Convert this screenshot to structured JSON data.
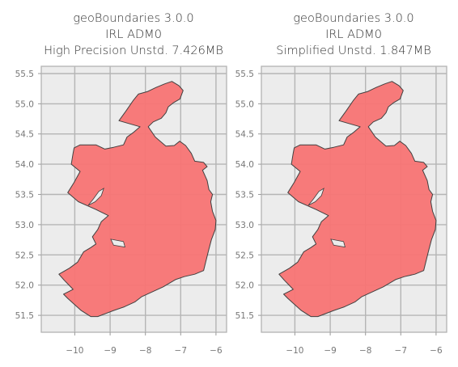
{
  "colors": {
    "land_fill": "#f87474",
    "land_edge": "#404040",
    "plot_background": "#ececec",
    "gridline": "#b5b5b5"
  },
  "panels": [
    {
      "title_lines": [
        "geoBoundaries 3.0.0",
        "IRL ADM0",
        "High Precision Unstd. 7.426MB"
      ],
      "x_ticks": [
        "−10",
        "−9",
        "−8",
        "−7",
        "−6"
      ],
      "y_ticks": [
        "51.5",
        "52.0",
        "52.5",
        "53.0",
        "53.5",
        "54.0",
        "54.5",
        "55.0",
        "55.5"
      ]
    },
    {
      "title_lines": [
        "geoBoundaries 3.0.0",
        "IRL ADM0",
        "Simplified Unstd. 1.847MB"
      ],
      "x_ticks": [
        "−10",
        "−9",
        "−8",
        "−7",
        "−6"
      ],
      "y_ticks": [
        "51.5",
        "52.0",
        "52.5",
        "53.0",
        "53.5",
        "54.0",
        "54.5",
        "55.0",
        "55.5"
      ]
    }
  ],
  "map_data": {
    "projection": "lon-lat (plate carrée, equal aspect in display)",
    "xlim": [
      -10.95,
      -5.7
    ],
    "ylim": [
      51.22,
      55.62
    ],
    "x_tick_values": [
      -10,
      -9,
      -8,
      -7,
      -6
    ],
    "y_tick_values": [
      51.5,
      52.0,
      52.5,
      53.0,
      53.5,
      54.0,
      54.5,
      55.0,
      55.5
    ],
    "grid": true,
    "ireland_outline_lonlat": [
      [
        -7.25,
        55.37
      ],
      [
        -7.05,
        55.3
      ],
      [
        -6.93,
        55.22
      ],
      [
        -7.02,
        55.08
      ],
      [
        -7.2,
        55.02
      ],
      [
        -7.35,
        54.95
      ],
      [
        -7.42,
        54.85
      ],
      [
        -7.55,
        54.76
      ],
      [
        -7.78,
        54.7
      ],
      [
        -7.92,
        54.62
      ],
      [
        -7.72,
        54.45
      ],
      [
        -7.42,
        54.3
      ],
      [
        -7.18,
        54.31
      ],
      [
        -7.03,
        54.38
      ],
      [
        -6.86,
        54.31
      ],
      [
        -6.7,
        54.18
      ],
      [
        -6.6,
        54.05
      ],
      [
        -6.35,
        54.03
      ],
      [
        -6.25,
        53.96
      ],
      [
        -6.38,
        53.9
      ],
      [
        -6.25,
        53.73
      ],
      [
        -6.2,
        53.58
      ],
      [
        -6.1,
        53.5
      ],
      [
        -6.15,
        53.38
      ],
      [
        -6.1,
        53.22
      ],
      [
        -6.0,
        53.07
      ],
      [
        -6.02,
        52.92
      ],
      [
        -6.13,
        52.75
      ],
      [
        -6.22,
        52.55
      ],
      [
        -6.35,
        52.24
      ],
      [
        -6.6,
        52.18
      ],
      [
        -6.9,
        52.14
      ],
      [
        -7.15,
        52.09
      ],
      [
        -7.5,
        51.97
      ],
      [
        -7.8,
        51.89
      ],
      [
        -8.1,
        51.81
      ],
      [
        -8.3,
        51.72
      ],
      [
        -8.6,
        51.64
      ],
      [
        -8.9,
        51.58
      ],
      [
        -9.35,
        51.48
      ],
      [
        -9.55,
        51.48
      ],
      [
        -9.82,
        51.58
      ],
      [
        -10.2,
        51.78
      ],
      [
        -10.32,
        51.85
      ],
      [
        -10.05,
        51.93
      ],
      [
        -10.3,
        52.08
      ],
      [
        -10.45,
        52.18
      ],
      [
        -10.15,
        52.28
      ],
      [
        -9.92,
        52.38
      ],
      [
        -9.75,
        52.55
      ],
      [
        -9.55,
        52.62
      ],
      [
        -9.4,
        52.68
      ],
      [
        -9.5,
        52.8
      ],
      [
        -9.35,
        52.92
      ],
      [
        -9.25,
        53.05
      ],
      [
        -9.05,
        53.15
      ],
      [
        -9.4,
        53.25
      ],
      [
        -9.9,
        53.38
      ],
      [
        -10.2,
        53.53
      ],
      [
        -10.02,
        53.7
      ],
      [
        -9.85,
        53.88
      ],
      [
        -10.1,
        54.0
      ],
      [
        -10.05,
        54.18
      ],
      [
        -10.02,
        54.27
      ],
      [
        -9.85,
        54.32
      ],
      [
        -9.4,
        54.32
      ],
      [
        -9.15,
        54.25
      ],
      [
        -8.9,
        54.28
      ],
      [
        -8.62,
        54.32
      ],
      [
        -8.52,
        54.45
      ],
      [
        -8.35,
        54.52
      ],
      [
        -8.15,
        54.62
      ],
      [
        -8.75,
        54.72
      ],
      [
        -8.55,
        54.88
      ],
      [
        -8.35,
        55.05
      ],
      [
        -8.2,
        55.16
      ],
      [
        -7.95,
        55.2
      ],
      [
        -7.7,
        55.27
      ],
      [
        -7.45,
        55.33
      ],
      [
        -7.25,
        55.37
      ]
    ],
    "lough_outlines_lonlat": [
      [
        [
          -9.62,
          53.32
        ],
        [
          -9.42,
          53.38
        ],
        [
          -9.25,
          53.48
        ],
        [
          -9.18,
          53.6
        ],
        [
          -9.32,
          53.55
        ],
        [
          -9.48,
          53.42
        ],
        [
          -9.62,
          53.32
        ]
      ],
      [
        [
          -8.98,
          52.76
        ],
        [
          -8.62,
          52.72
        ],
        [
          -8.58,
          52.63
        ],
        [
          -8.9,
          52.66
        ],
        [
          -8.98,
          52.76
        ]
      ]
    ]
  }
}
